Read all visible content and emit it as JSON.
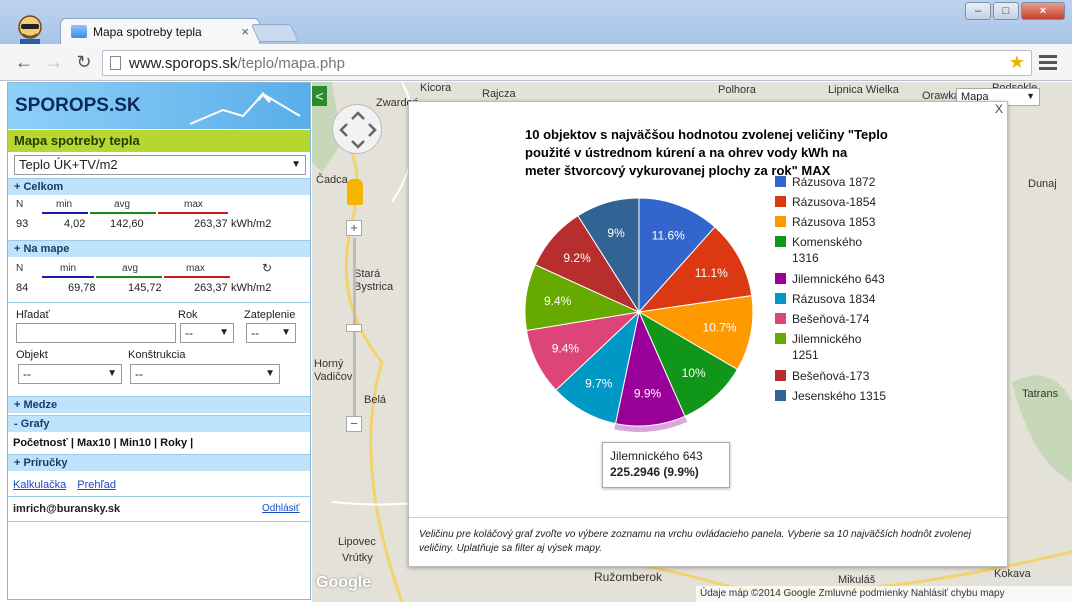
{
  "browser": {
    "tab_title": "Mapa spotreby tepla",
    "tab_close": "×",
    "url_host": "www.sporops.sk",
    "url_path": "/teplo/mapa.php",
    "minimize": "–",
    "maximize": "□",
    "close": "×",
    "back": "←",
    "forward": "→",
    "reload": "↻",
    "star": "★"
  },
  "sidebar": {
    "logo": "SPOROPS.SK",
    "title": "Mapa spotreby tepla",
    "selected_quantity": "Teplo ÚK+TV/m2",
    "celkom": {
      "header": "+ Celkom",
      "n_label": "N",
      "min_label": "min",
      "avg_label": "avg",
      "max_label": "max",
      "n": "93",
      "min": "4,02",
      "avg": "142,60",
      "max": "263,37",
      "unit": "kWh/m2"
    },
    "na_mape": {
      "header": "+ Na mape",
      "n_label": "N",
      "min_label": "min",
      "avg_label": "avg",
      "max_label": "max",
      "refresh": "↻",
      "n": "84",
      "min": "69,78",
      "avg": "145,72",
      "max": "263,37",
      "unit": "kWh/m2"
    },
    "filters": {
      "search_label": "Hľadať",
      "rok_label": "Rok",
      "rok_value": "--",
      "zateplenie_label": "Zateplenie",
      "zateplenie_value": "--",
      "objekt_label": "Objekt",
      "objekt_value": "--",
      "konstrukcia_label": "Konštrukcia",
      "konstrukcia_value": "--"
    },
    "medze": "+ Medze",
    "grafy": "- Grafy",
    "grafy_links": "Početnosť | Max10 | Min10 | Roky |",
    "prirucky": "+ Príručky",
    "links": [
      "Kalkulačka",
      "Prehľad"
    ],
    "user": "imrich@buransky.sk",
    "logout": "Odhlásiť"
  },
  "map": {
    "collapse": "<",
    "maptype": "Mapa",
    "google": "Google",
    "footer": "Údaje máp ©2014 Google   Zmluvné podmienky   Nahlásiť chybu mapy",
    "towns": [
      {
        "name": "Kicora"
      },
      {
        "name": "Rajcza"
      },
      {
        "name": "Zwardoń"
      },
      {
        "name": "Polhora"
      },
      {
        "name": "Lipnica Wielka"
      },
      {
        "name": "Orawka"
      },
      {
        "name": "Podsokle"
      },
      {
        "name": "Čadca"
      },
      {
        "name": "Stará Bystrica"
      },
      {
        "name": "Horný Vadičov"
      },
      {
        "name": "Belá"
      },
      {
        "name": "Lipovec"
      },
      {
        "name": "Vrútky"
      },
      {
        "name": "Ružomberok"
      },
      {
        "name": "Mikuláš"
      },
      {
        "name": "Kokava"
      },
      {
        "name": "Dunaj"
      },
      {
        "name": "Tatrans"
      }
    ]
  },
  "popup": {
    "close": "X",
    "note": "Veličinu pre koláčový graf zvoľte vo výbere zoznamu na vrchu ovládacieho panela. Vyberie sa 10 najväčších hodnôt zvolenej veličiny. Uplatňuje sa filter aj výsek mapy.",
    "tooltip_name": "Jilemnického 643",
    "tooltip_value": "225.2946 (9.9%)"
  },
  "chart_data": {
    "type": "pie",
    "title": "10 objektov s najväčšou hodnotou zvolenej veličiny \"Teplo použité v ústrednom kúrení a na ohrev vody kWh na meter štvorcový vykurovanej plochy za rok\" MAX",
    "title_lines": [
      "10 objektov s najväčšou hodnotou zvolenej veličiny \"Teplo",
      "použité v ústrednom kúrení a na ohrev vody kWh na",
      "meter štvorcový vykurovanej plochy za rok\" MAX"
    ],
    "legend_position": "right",
    "highlighted_slice": 4,
    "slices": [
      {
        "label": "Rázusova 1872",
        "label_lines": [
          "Rázusova 1872"
        ],
        "percent": 11.6,
        "pct_label": "11.6%",
        "color": "#3366cc"
      },
      {
        "label": "Rázusova-1854",
        "label_lines": [
          "Rázusova-1854"
        ],
        "percent": 11.1,
        "pct_label": "11.1%",
        "color": "#dc3912"
      },
      {
        "label": "Rázusova 1853",
        "label_lines": [
          "Rázusova 1853"
        ],
        "percent": 10.7,
        "pct_label": "10.7%",
        "color": "#ff9900"
      },
      {
        "label": "Komenského 1316",
        "label_lines": [
          "Komenského",
          "1316"
        ],
        "percent": 10.0,
        "pct_label": "10%",
        "color": "#109618"
      },
      {
        "label": "Jilemnického 643",
        "label_lines": [
          "Jilemnického 643"
        ],
        "percent": 9.9,
        "pct_label": "9.9%",
        "value": 225.2946,
        "color": "#990099"
      },
      {
        "label": "Rázusova 1834",
        "label_lines": [
          "Rázusova 1834"
        ],
        "percent": 9.7,
        "pct_label": "9.7%",
        "color": "#0099c6"
      },
      {
        "label": "Bešeňová-174",
        "label_lines": [
          "Bešeňová-174"
        ],
        "percent": 9.4,
        "pct_label": "9.4%",
        "color": "#dd4477"
      },
      {
        "label": "Jilemnického 1251",
        "label_lines": [
          "Jilemnického",
          "1251"
        ],
        "percent": 9.4,
        "pct_label": "9.4%",
        "color": "#66aa00"
      },
      {
        "label": "Bešeňová-173",
        "label_lines": [
          "Bešeňová-173"
        ],
        "percent": 9.2,
        "pct_label": "9.2%",
        "color": "#b82e2e"
      },
      {
        "label": "Jesenského 1315",
        "label_lines": [
          "Jesenského 1315"
        ],
        "percent": 9.0,
        "pct_label": "9%",
        "color": "#316395"
      }
    ]
  }
}
